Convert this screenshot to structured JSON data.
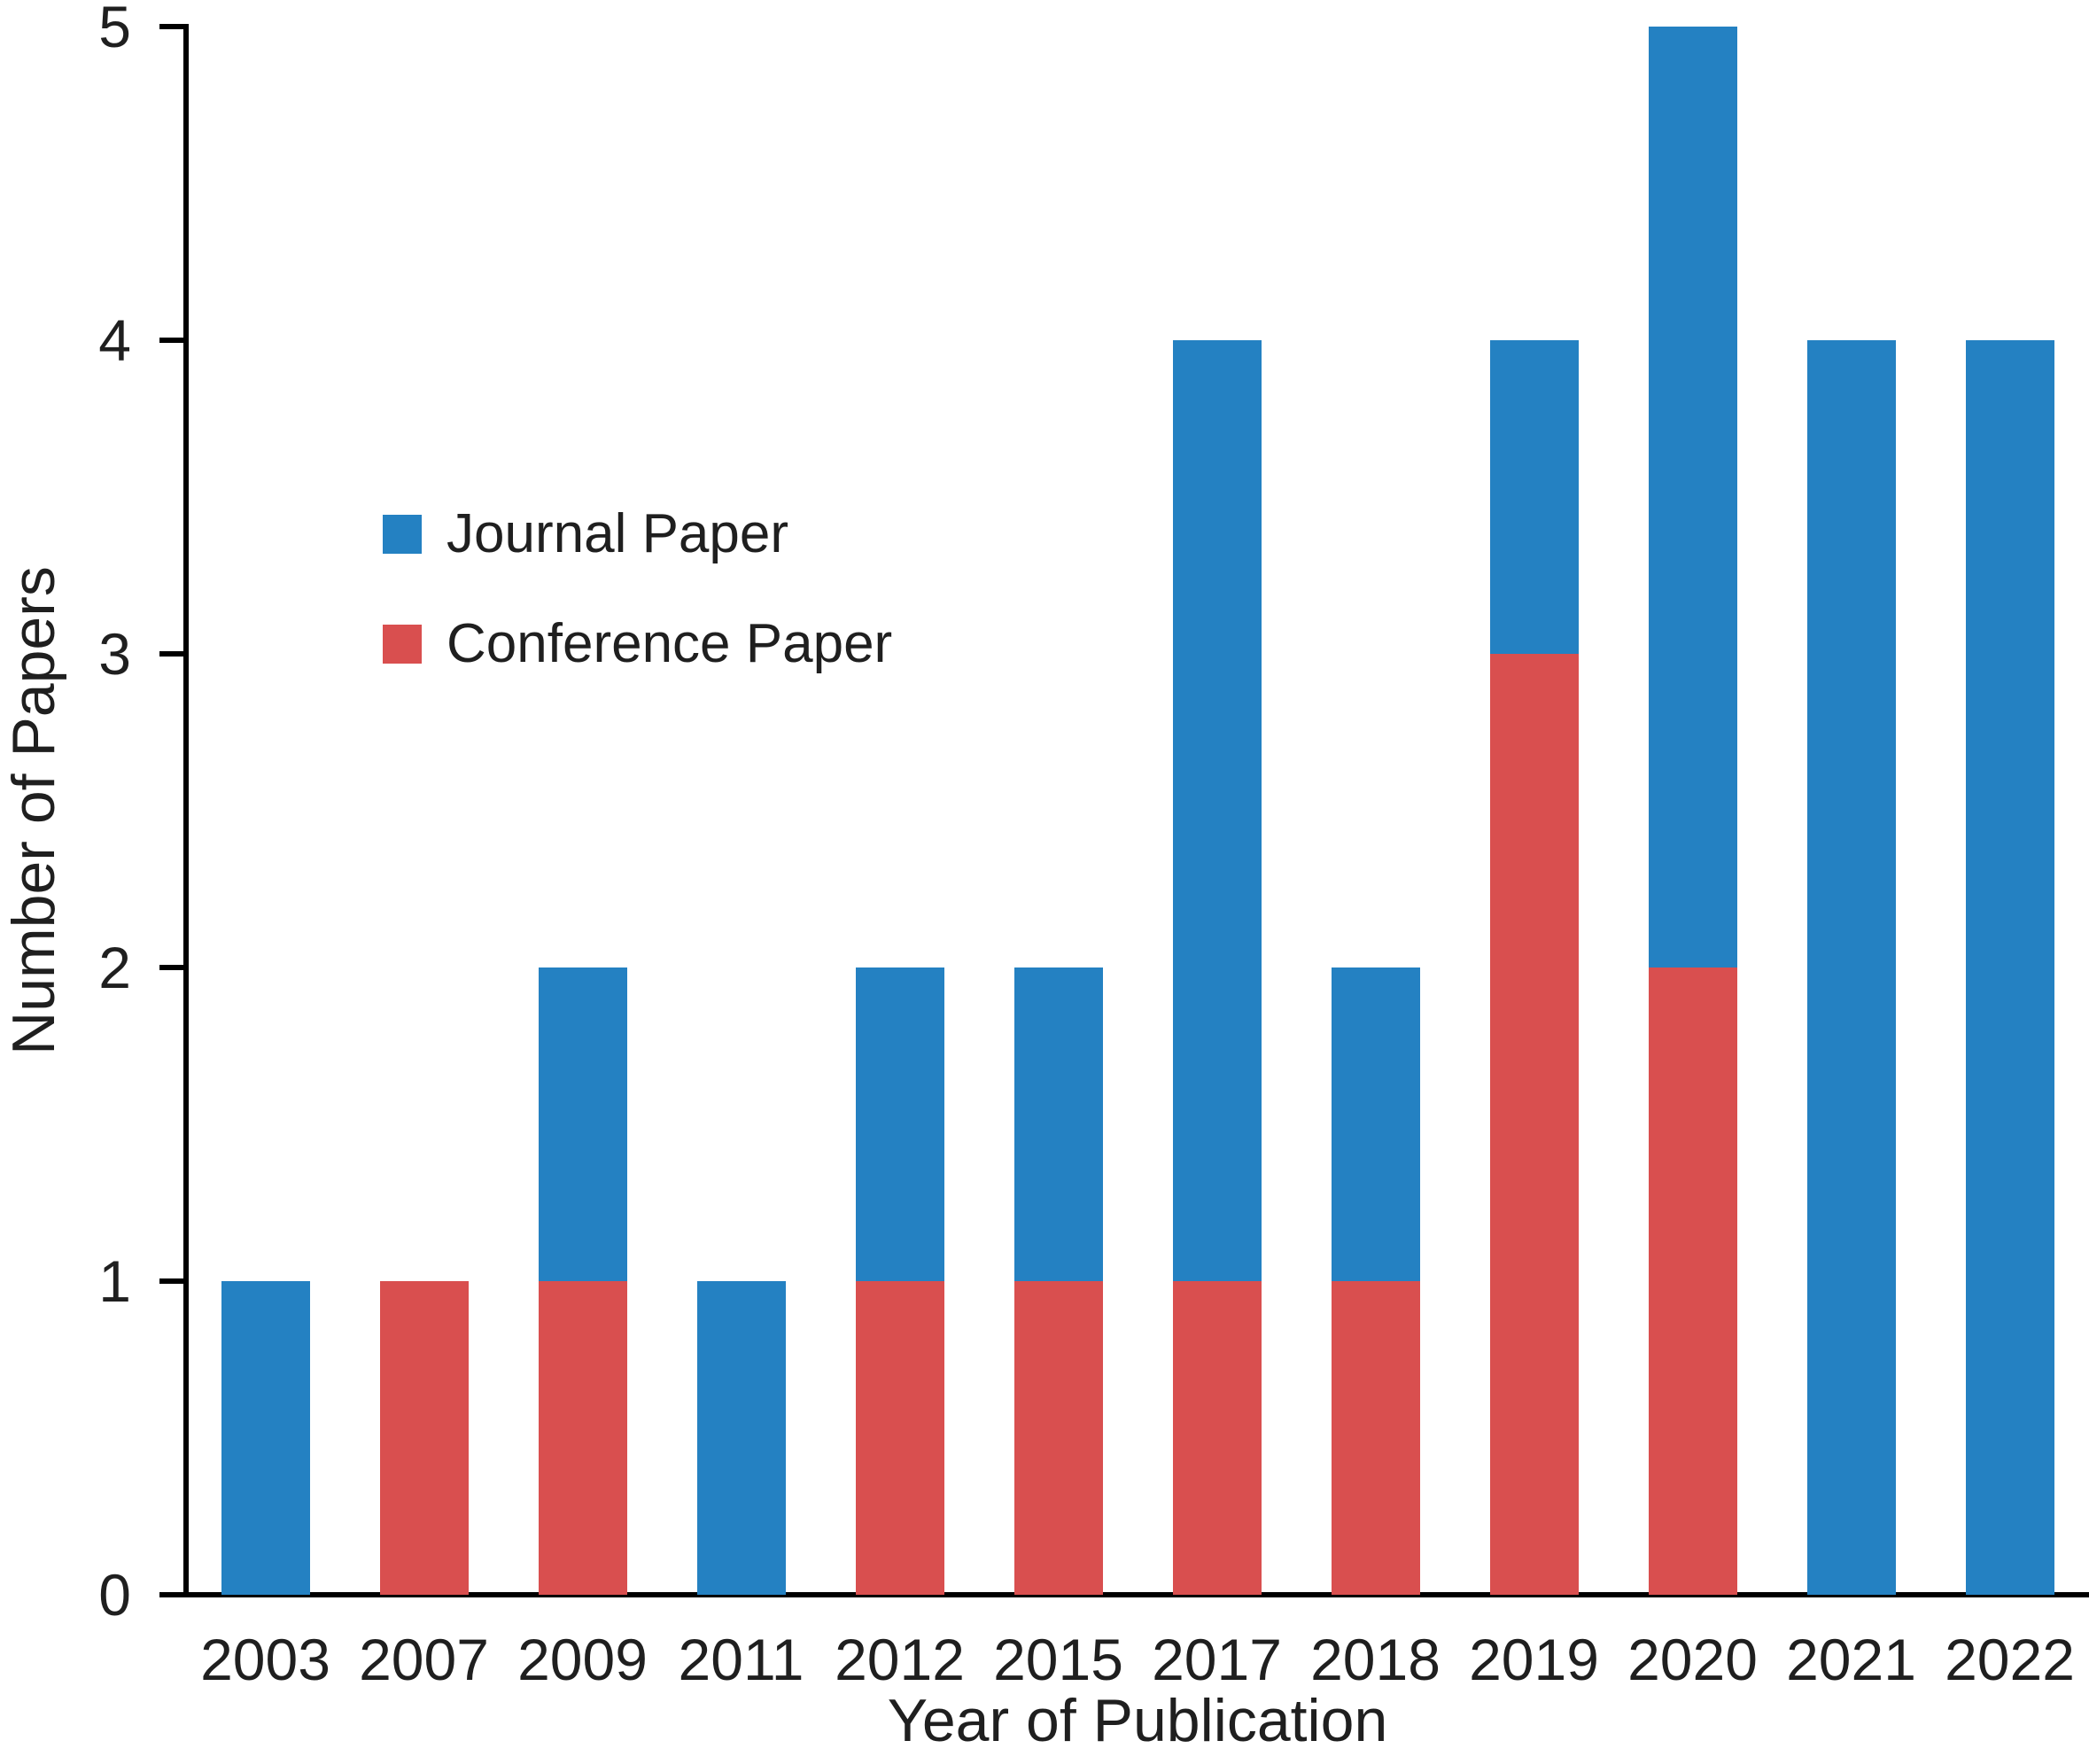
{
  "chart_data": {
    "type": "bar",
    "stacked": true,
    "title": "",
    "xlabel": "Year of Publication",
    "ylabel": "Number of Papers",
    "categories": [
      "2003",
      "2007",
      "2009",
      "2011",
      "2012",
      "2015",
      "2017",
      "2018",
      "2019",
      "2020",
      "2021",
      "2022"
    ],
    "series": [
      {
        "name": "Journal Paper",
        "color": "#2481C2",
        "values": [
          1,
          0,
          1,
          1,
          1,
          1,
          3,
          1,
          1,
          3,
          4,
          4
        ]
      },
      {
        "name": "Conference Paper",
        "color": "#D94F4F",
        "values": [
          0,
          1,
          1,
          0,
          1,
          1,
          1,
          1,
          3,
          2,
          0,
          0
        ]
      }
    ],
    "stack_bottom_to_top": [
      "Conference Paper",
      "Journal Paper"
    ],
    "totals": [
      1,
      1,
      2,
      1,
      2,
      2,
      4,
      2,
      4,
      5,
      4,
      4
    ],
    "ylim": [
      0,
      5
    ],
    "y_ticks": [
      0,
      1,
      2,
      3,
      4,
      5
    ],
    "grid": false,
    "legend_position": "upper-left-inside",
    "axis_color": "#000000",
    "text_color": "#1f1f1f"
  }
}
